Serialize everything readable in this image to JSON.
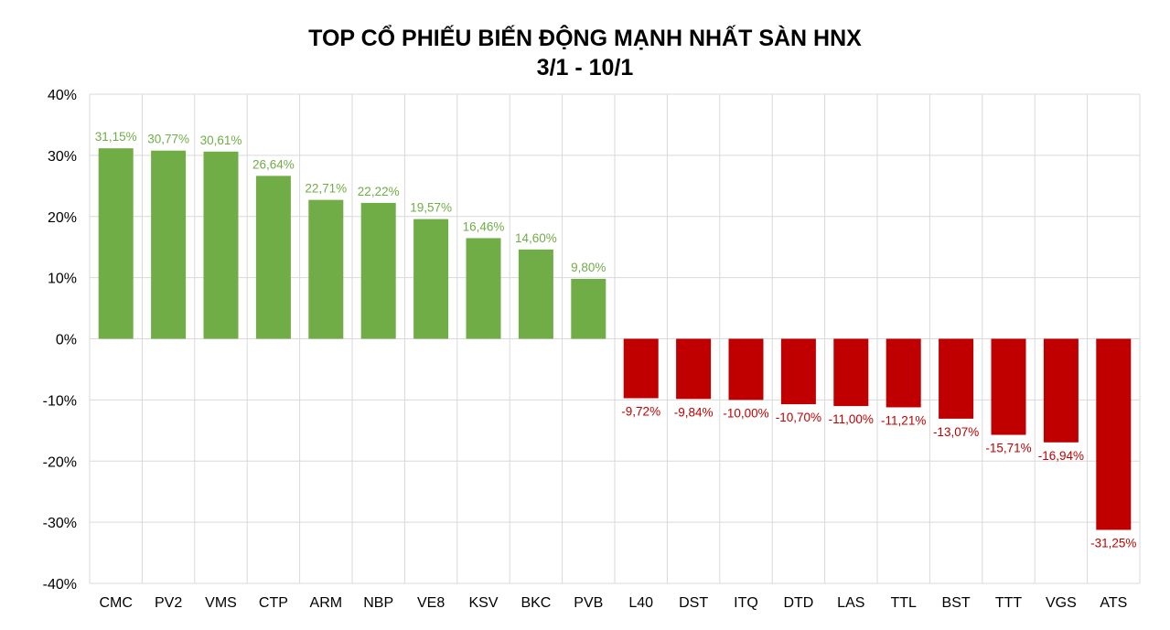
{
  "chart_data": {
    "type": "bar",
    "title": "TOP CỔ PHIẾU BIẾN ĐỘNG MẠNH NHẤT SÀN HNX",
    "subtitle": "3/1 - 10/1",
    "xlabel": "",
    "ylabel": "",
    "ylim": [
      -40,
      40
    ],
    "yticks": [
      40,
      30,
      20,
      10,
      0,
      -10,
      -20,
      -30,
      -40
    ],
    "ytick_labels": [
      "40%",
      "30%",
      "20%",
      "10%",
      "0%",
      "-10%",
      "-20%",
      "-30%",
      "-40%"
    ],
    "grid": true,
    "legend": "none",
    "categories": [
      "CMC",
      "PV2",
      "VMS",
      "CTP",
      "ARM",
      "NBP",
      "VE8",
      "KSV",
      "BKC",
      "PVB",
      "L40",
      "DST",
      "ITQ",
      "DTD",
      "LAS",
      "TTL",
      "BST",
      "TTT",
      "VGS",
      "ATS"
    ],
    "values": [
      31.15,
      30.77,
      30.61,
      26.64,
      22.71,
      22.22,
      19.57,
      16.46,
      14.6,
      9.8,
      -9.72,
      -9.84,
      -10.0,
      -10.7,
      -11.0,
      -11.21,
      -13.07,
      -15.71,
      -16.94,
      -31.25
    ],
    "data_labels": [
      "31,15%",
      "30,77%",
      "30,61%",
      "26,64%",
      "22,71%",
      "22,22%",
      "19,57%",
      "16,46%",
      "14,60%",
      "9,80%",
      "-9,72%",
      "-9,84%",
      "-10,00%",
      "-10,70%",
      "-11,00%",
      "-11,21%",
      "-13,07%",
      "-15,71%",
      "-16,94%",
      "-31,25%"
    ],
    "colors": {
      "positive": "#70AD47",
      "negative": "#C00000",
      "grid": "#D9D9D9"
    }
  }
}
